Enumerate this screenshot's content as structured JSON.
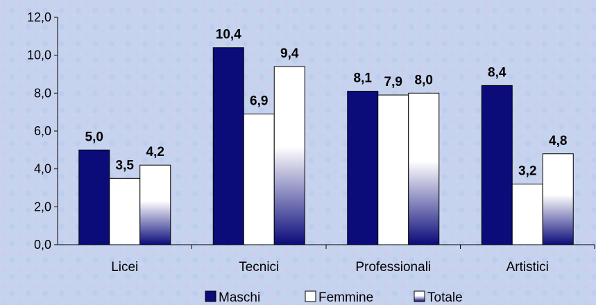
{
  "chart_data": {
    "type": "bar",
    "categories": [
      "Licei",
      "Tecnici",
      "Professionali",
      "Artistici"
    ],
    "series": [
      {
        "name": "Maschi",
        "values": [
          5.0,
          10.4,
          8.1,
          8.4
        ]
      },
      {
        "name": "Femmine",
        "values": [
          3.5,
          6.9,
          7.9,
          3.2
        ]
      },
      {
        "name": "Totale",
        "values": [
          4.2,
          9.4,
          8.0,
          4.8
        ]
      }
    ],
    "data_labels": [
      [
        "5,0",
        "10,4",
        "8,1",
        "8,4"
      ],
      [
        "3,5",
        "6,9",
        "7,9",
        "3,2"
      ],
      [
        "4,2",
        "9,4",
        "8,0",
        "4,8"
      ]
    ],
    "yticks": [
      "0,0",
      "2,0",
      "4,0",
      "6,0",
      "8,0",
      "10,0",
      "12,0"
    ],
    "ylim": [
      0,
      12
    ],
    "grid": false,
    "legend_position": "bottom",
    "colors": {
      "maschi": "#0b0b7a",
      "femmine": "#ffffff",
      "totale_top": "#ffffff",
      "totale_bottom": "#0b0b7a",
      "background": "#c6d3ee",
      "axis": "#000000"
    }
  }
}
